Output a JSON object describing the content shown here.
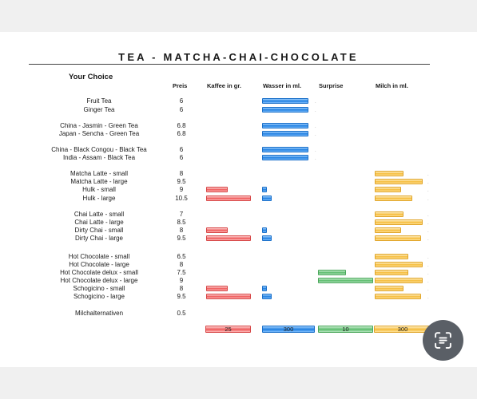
{
  "title": "TEA - MATCHA-CHAI-CHOCOLATE",
  "choice_label": "Your Choice",
  "headers": {
    "price": "Preis",
    "coffee": "Kaffee in gr.",
    "water": "Wasser in ml.",
    "surprise": "Surprise",
    "milk": "Milch in ml."
  },
  "rows": [
    {
      "name": "Fruit Tea",
      "price": "6",
      "coffee": 0,
      "water": 300,
      "surprise": 0,
      "milk": 0
    },
    {
      "name": "Ginger Tea",
      "price": "6",
      "coffee": 0,
      "water": 300,
      "surprise": 0,
      "milk": 0
    },
    {
      "name": "China - Jasmin - Green Tea",
      "price": "6.8",
      "coffee": 0,
      "water": 300,
      "surprise": 0,
      "milk": 0
    },
    {
      "name": "Japan - Sencha - Green Tea",
      "price": "6.8",
      "coffee": 0,
      "water": 300,
      "surprise": 0,
      "milk": 0
    },
    {
      "name": "China - Black Congou - Black Tea",
      "price": "6",
      "coffee": 0,
      "water": 300,
      "surprise": 0,
      "milk": 0
    },
    {
      "name": "India - Assam - Black Tea",
      "price": "6",
      "coffee": 0,
      "water": 300,
      "surprise": 0,
      "milk": 0
    },
    {
      "name": "Matcha Latte - small",
      "price": "8",
      "coffee": 0,
      "water": 0,
      "surprise": 0,
      "milk": 200
    },
    {
      "name": "Matcha Latte - large",
      "price": "9.5",
      "coffee": 0,
      "water": 0,
      "surprise": 0,
      "milk": 330
    },
    {
      "name": "Hulk - small",
      "price": "9",
      "coffee": 12,
      "water": 30,
      "surprise": 0,
      "milk": 180
    },
    {
      "name": "Hulk - large",
      "price": "10.5",
      "coffee": 25,
      "water": 60,
      "surprise": 0,
      "milk": 260
    },
    {
      "name": "Chai Latte - small",
      "price": "7",
      "coffee": 0,
      "water": 0,
      "surprise": 0,
      "milk": 200
    },
    {
      "name": "Chai Latte - large",
      "price": "8.5",
      "coffee": 0,
      "water": 0,
      "surprise": 0,
      "milk": 330
    },
    {
      "name": "Dirty Chai - small",
      "price": "8",
      "coffee": 12,
      "water": 30,
      "surprise": 0,
      "milk": 180
    },
    {
      "name": "Dirty Chai - large",
      "price": "9.5",
      "coffee": 25,
      "water": 60,
      "surprise": 0,
      "milk": 320
    },
    {
      "name": "Hot Chocolate - small",
      "price": "6.5",
      "coffee": 0,
      "water": 0,
      "surprise": 0,
      "milk": 230
    },
    {
      "name": "Hot Chocolate - large",
      "price": "8",
      "coffee": 0,
      "water": 0,
      "surprise": 0,
      "milk": 330
    },
    {
      "name": "Hot Chocolate delux - small",
      "price": "7.5",
      "coffee": 0,
      "water": 0,
      "surprise": 5,
      "milk": 230
    },
    {
      "name": "Hot Chocolate delux - large",
      "price": "9",
      "coffee": 0,
      "water": 0,
      "surprise": 10,
      "milk": 330
    },
    {
      "name": "Schogicino - small",
      "price": "8",
      "coffee": 12,
      "water": 30,
      "surprise": 0,
      "milk": 200
    },
    {
      "name": "Schogicino - large",
      "price": "9.5",
      "coffee": 25,
      "water": 60,
      "surprise": 0,
      "milk": 320
    },
    {
      "name": "Milchalternativen",
      "price": "0.5",
      "coffee": 0,
      "water": 0,
      "surprise": 0,
      "milk": 0
    }
  ],
  "totals": {
    "coffee": "25",
    "water": "300",
    "surprise": "10",
    "milk": "300"
  },
  "lens_button": {
    "icon": "scan-text-icon"
  }
}
